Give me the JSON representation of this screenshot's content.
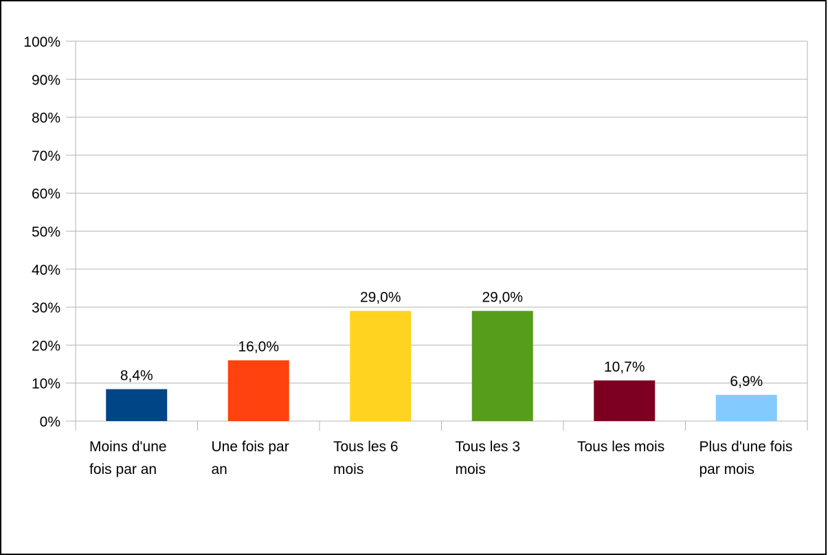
{
  "chart_data": {
    "type": "bar",
    "title": "",
    "xlabel": "",
    "ylabel": "",
    "ylim": [
      0,
      100
    ],
    "yticks": [
      "0%",
      "10%",
      "20%",
      "30%",
      "40%",
      "50%",
      "60%",
      "70%",
      "80%",
      "90%",
      "100%"
    ],
    "grid": true,
    "legend": "none",
    "categories": [
      [
        "Moins d'une",
        "fois par an"
      ],
      [
        "Une fois par",
        "an"
      ],
      [
        "Tous les 6",
        "mois"
      ],
      [
        "Tous les 3",
        "mois"
      ],
      [
        "Tous les mois"
      ],
      [
        "Plus d'une fois",
        "par mois"
      ]
    ],
    "values": [
      8.4,
      16.0,
      29.0,
      29.0,
      10.7,
      6.9
    ],
    "data_labels": [
      "8,4%",
      "16,0%",
      "29,0%",
      "29,0%",
      "10,7%",
      "6,9%"
    ],
    "colors": [
      "#004586",
      "#ff420e",
      "#ffd320",
      "#579d1c",
      "#7e0021",
      "#83caff"
    ]
  }
}
